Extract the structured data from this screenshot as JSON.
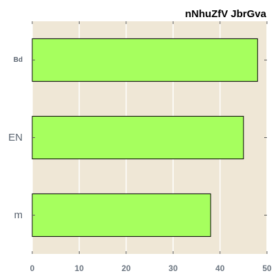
{
  "chart_data": {
    "type": "bar",
    "orientation": "horizontal",
    "title": "nNhuZfV JbrGva",
    "xlabel": "",
    "ylabel": "",
    "categories": [
      "Bd",
      "EN",
      "m"
    ],
    "values": [
      48,
      45,
      38
    ],
    "xlim": [
      0,
      50
    ],
    "xticks": [
      "0",
      "10",
      "20",
      "30",
      "40",
      "50"
    ],
    "grid": true,
    "colors": {
      "bar_fill": "#a6ff5e",
      "bar_edge": "#000000",
      "plot_background": "#efe7d6",
      "grid": "#ffffff",
      "tick_label": "#6b7580"
    }
  }
}
